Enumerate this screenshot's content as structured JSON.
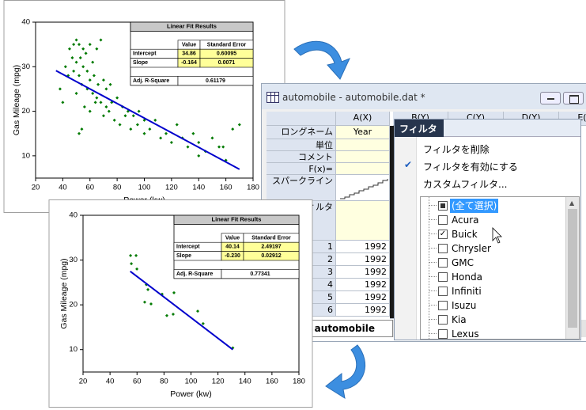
{
  "chart_data": [
    {
      "type": "scatter",
      "x_label": "Power (kw)",
      "y_label": "Gas Mileage (mpg)",
      "xlim": [
        20,
        180
      ],
      "ylim": [
        5,
        40
      ],
      "xticks": [
        20,
        40,
        60,
        80,
        100,
        120,
        140,
        160,
        180
      ],
      "yticks": [
        10,
        20,
        30,
        40
      ],
      "points": {
        "color": "#007a00",
        "x": [
          45,
          48,
          50,
          52,
          55,
          60,
          65,
          47,
          50,
          53,
          57,
          62,
          68,
          42,
          44,
          48,
          52,
          55,
          58,
          60,
          63,
          66,
          70,
          72,
          75,
          54,
          58,
          62,
          65,
          68,
          72,
          76,
          80,
          84,
          88,
          92,
          96,
          100,
          38,
          40,
          50,
          56,
          60,
          64,
          70,
          74,
          78,
          82,
          86,
          90,
          95,
          100,
          104,
          108,
          112,
          116,
          120,
          124,
          128,
          132,
          136,
          140,
          145,
          150,
          155,
          160,
          165,
          170,
          52,
          54,
          140,
          158
        ],
        "y": [
          34,
          35,
          36,
          35,
          34,
          35,
          34,
          32,
          31,
          32,
          33,
          31,
          36,
          30,
          28,
          29,
          28,
          30,
          29,
          27,
          28,
          26,
          27,
          25,
          26,
          26,
          25,
          24,
          23,
          22,
          21,
          22,
          23,
          21,
          20,
          19,
          20,
          18,
          25,
          22,
          24,
          21,
          20,
          22,
          19,
          20,
          18,
          17,
          19,
          16,
          17,
          15,
          16,
          18,
          14,
          15,
          13,
          17,
          14,
          12,
          15,
          13,
          11,
          14,
          12,
          9,
          16,
          17,
          15,
          16,
          10,
          12
        ]
      },
      "fit_line": {
        "color": "#0000cc",
        "x": [
          35,
          170
        ],
        "y": [
          29.12,
          6.98
        ]
      },
      "fit_table": {
        "title": "Linear Fit Results",
        "headers": [
          "Value",
          "Standard Error"
        ],
        "rows": [
          [
            "Intercept",
            34.86,
            0.60095
          ],
          [
            "Slope",
            -0.164,
            0.0071
          ],
          [
            "Adj. R-Square",
            0.61179
          ]
        ]
      }
    },
    {
      "type": "scatter",
      "x_label": "Power (kw)",
      "y_label": "Gas Mileage (mpg)",
      "xlim": [
        20,
        180
      ],
      "ylim": [
        5,
        40
      ],
      "xticks": [
        20,
        40,
        60,
        80,
        100,
        120,
        140,
        160,
        180
      ],
      "yticks": [
        10,
        20,
        30,
        40
      ],
      "points": {
        "color": "#007a00",
        "x": [
          55.2,
          59.3,
          55.8,
          59.9,
          66.9,
          68.1,
          65.7,
          70.4,
          78.6,
          87.4,
          82.1,
          86.8,
          105,
          109,
          131
        ],
        "y": [
          31.0,
          31.0,
          29.2,
          28.0,
          24.5,
          23.4,
          20.6,
          20.2,
          22.4,
          22.7,
          17.6,
          17.9,
          18.6,
          15.8,
          10.4
        ]
      },
      "fit_line": {
        "color": "#0000cc",
        "x": [
          55,
          131
        ],
        "y": [
          27.49,
          10.01
        ]
      },
      "fit_table": {
        "title": "Linear Fit Results",
        "headers": [
          "Value",
          "Standard Error"
        ],
        "rows": [
          [
            "Intercept",
            40.14,
            2.49197
          ],
          [
            "Slope",
            "-0.230",
            0.02912
          ],
          [
            "Adj. R-Square",
            0.77341
          ]
        ]
      }
    }
  ],
  "spreadsheet": {
    "title": "automobile - automobile.dat *",
    "columns": [
      "A(X)",
      "B(Y)",
      "C(Y)",
      "D(Y)",
      "E(Y)"
    ],
    "row_labels": [
      "ロングネーム",
      "単位",
      "コメント",
      "F(x)=",
      "スパークライン",
      "フィルタ"
    ],
    "long_name_a": "Year",
    "row_numbers": [
      1,
      2,
      3,
      4,
      5,
      6
    ],
    "year_values": [
      1992,
      1992,
      1992,
      1992,
      1992,
      1992
    ],
    "sheet_tab": "automobile"
  },
  "filter_menu": {
    "title": "フィルタ",
    "actions": [
      "フィルタを削除",
      "フィルタを有効にする",
      "カスタムフィルタ..."
    ],
    "items": [
      "(全て選択)",
      "Acura",
      "Buick",
      "Chrysler",
      "GMC",
      "Honda",
      "Infiniti",
      "Isuzu",
      "Kia",
      "Lexus"
    ]
  }
}
